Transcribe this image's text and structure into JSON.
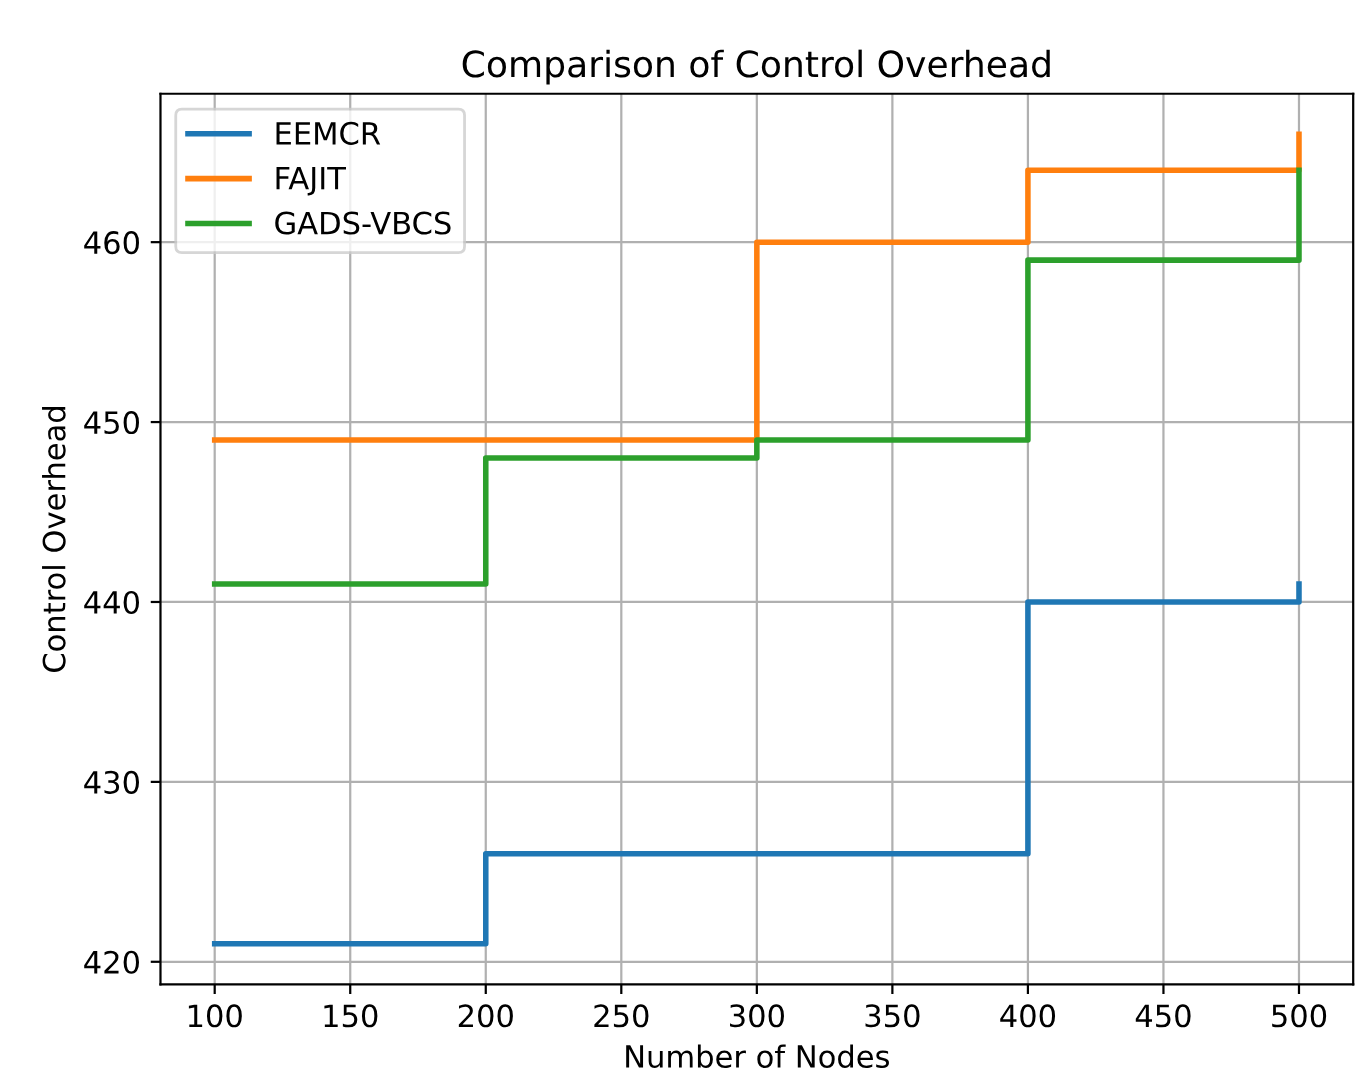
{
  "chart_data": {
    "type": "step",
    "title": "Comparison of Control Overhead",
    "xlabel": "Number of Nodes",
    "ylabel": "Control Overhead",
    "x": [
      100,
      200,
      300,
      400,
      500
    ],
    "series": [
      {
        "name": "EEMCR",
        "color": "#1f77b4",
        "values": [
          421,
          426,
          426,
          440,
          441
        ]
      },
      {
        "name": "FAJIT",
        "color": "#ff7f0e",
        "values": [
          449,
          449,
          460,
          464,
          466
        ]
      },
      {
        "name": "GADS-VBCS",
        "color": "#2ca02c",
        "values": [
          441,
          448,
          449,
          459,
          464
        ]
      }
    ],
    "xlim": [
      80,
      520
    ],
    "ylim": [
      418.75,
      468.25
    ],
    "xticks": [
      100,
      150,
      200,
      250,
      300,
      350,
      400,
      450,
      500
    ],
    "yticks": [
      420,
      430,
      440,
      450,
      460
    ],
    "grid": true,
    "legend": "top left",
    "line_style": "solid"
  }
}
